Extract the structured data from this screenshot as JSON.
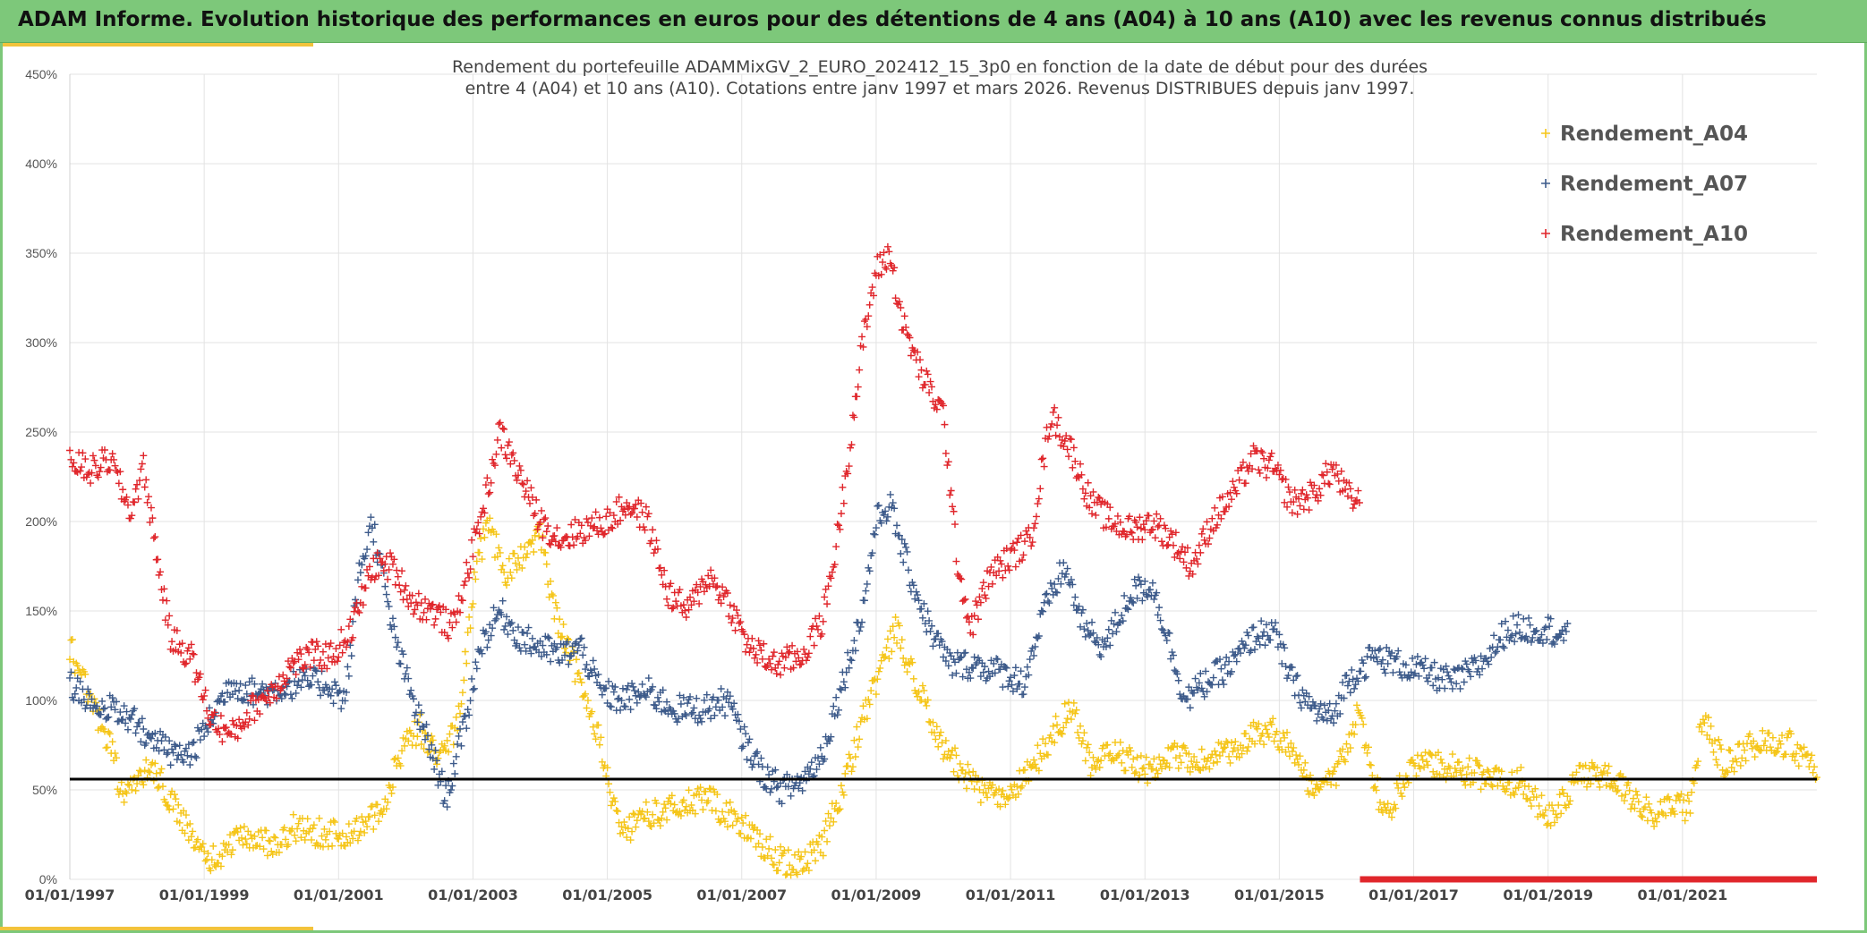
{
  "header": {
    "title": "ADAM Informe. Evolution historique des performances en euros pour des détentions de 4 ans (A04) à 10 ans (A10) avec les revenus connus distribués"
  },
  "chart_data": {
    "type": "scatter",
    "subtitle_line1": "Rendement du portefeuille ADAMMixGV_2_EURO_202412_15_3p0  en fonction de la date de début pour des durées",
    "subtitle_line2": "entre 4 (A04) et 10 ans (A10). Cotations entre janv 1997 et mars 2026. Revenus DISTRIBUES depuis janv 1997.",
    "y_ticks": [
      "0%",
      "50%",
      "100%",
      "150%",
      "200%",
      "250%",
      "300%",
      "350%",
      "400%",
      "450%"
    ],
    "x_ticks": [
      "01/01/1997",
      "01/01/1999",
      "01/01/2001",
      "01/01/2003",
      "01/01/2005",
      "01/01/2007",
      "01/01/2009",
      "01/01/2011",
      "01/01/2013",
      "01/01/2015",
      "01/01/2017",
      "01/01/2019",
      "01/01/2021"
    ],
    "x_range": [
      1997.0,
      2023.0
    ],
    "y_range": [
      0,
      450
    ],
    "reference_line": 56,
    "legend": [
      "Rendement_A04",
      "Rendement_A07",
      "Rendement_A10"
    ],
    "colors": {
      "A04": "#f5c518",
      "A07": "#3c5a8a",
      "A10": "#e0262b",
      "ref": "#000000",
      "grid": "#e3e3e3"
    },
    "series": [
      {
        "name": "Rendement_A04",
        "key": "A04",
        "anchors": [
          [
            1997.0,
            130
          ],
          [
            1997.3,
            100
          ],
          [
            1997.6,
            75
          ],
          [
            1997.8,
            45
          ],
          [
            1998.0,
            55
          ],
          [
            1998.2,
            65
          ],
          [
            1998.5,
            45
          ],
          [
            1998.8,
            25
          ],
          [
            1999.1,
            10
          ],
          [
            1999.4,
            20
          ],
          [
            1999.7,
            25
          ],
          [
            2000.0,
            20
          ],
          [
            2000.4,
            30
          ],
          [
            2000.8,
            25
          ],
          [
            2001.1,
            25
          ],
          [
            2001.4,
            30
          ],
          [
            2001.7,
            40
          ],
          [
            2001.9,
            70
          ],
          [
            2002.2,
            85
          ],
          [
            2002.5,
            65
          ],
          [
            2002.8,
            90
          ],
          [
            2003.0,
            160
          ],
          [
            2003.2,
            200
          ],
          [
            2003.5,
            170
          ],
          [
            2003.8,
            185
          ],
          [
            2004.0,
            195
          ],
          [
            2004.2,
            150
          ],
          [
            2004.5,
            120
          ],
          [
            2004.8,
            90
          ],
          [
            2005.0,
            55
          ],
          [
            2005.2,
            25
          ],
          [
            2005.5,
            35
          ],
          [
            2006.0,
            40
          ],
          [
            2006.5,
            45
          ],
          [
            2007.0,
            30
          ],
          [
            2007.3,
            20
          ],
          [
            2007.6,
            10
          ],
          [
            2007.9,
            8
          ],
          [
            2008.2,
            20
          ],
          [
            2008.5,
            50
          ],
          [
            2008.8,
            90
          ],
          [
            2009.1,
            120
          ],
          [
            2009.3,
            140
          ],
          [
            2009.6,
            110
          ],
          [
            2009.9,
            80
          ],
          [
            2010.2,
            65
          ],
          [
            2010.5,
            50
          ],
          [
            2010.9,
            45
          ],
          [
            2011.3,
            60
          ],
          [
            2011.6,
            80
          ],
          [
            2011.9,
            95
          ],
          [
            2012.2,
            65
          ],
          [
            2012.6,
            70
          ],
          [
            2013.0,
            60
          ],
          [
            2013.4,
            70
          ],
          [
            2013.8,
            65
          ],
          [
            2014.2,
            70
          ],
          [
            2014.6,
            80
          ],
          [
            2014.9,
            85
          ],
          [
            2015.2,
            70
          ],
          [
            2015.5,
            50
          ],
          [
            2015.8,
            55
          ],
          [
            2016.0,
            75
          ],
          [
            2016.2,
            95
          ],
          [
            2016.4,
            55
          ],
          [
            2016.6,
            35
          ],
          [
            2016.9,
            60
          ],
          [
            2017.3,
            65
          ],
          [
            2017.8,
            60
          ],
          [
            2018.3,
            55
          ],
          [
            2018.6,
            55
          ],
          [
            2018.9,
            40
          ],
          [
            2019.1,
            35
          ],
          [
            2019.4,
            55
          ],
          [
            2019.7,
            60
          ],
          [
            2020.0,
            55
          ],
          [
            2020.3,
            45
          ],
          [
            2020.6,
            35
          ],
          [
            2020.9,
            40
          ],
          [
            2021.1,
            40
          ],
          [
            2021.3,
            90
          ],
          [
            2021.6,
            65
          ],
          [
            2021.9,
            70
          ],
          [
            2022.2,
            80
          ],
          [
            2022.6,
            75
          ],
          [
            2022.9,
            65
          ],
          [
            2023.0,
            55
          ]
        ]
      },
      {
        "name": "Rendement_A07",
        "key": "A07",
        "anchors": [
          [
            1997.0,
            110
          ],
          [
            1997.3,
            100
          ],
          [
            1997.6,
            95
          ],
          [
            1997.9,
            90
          ],
          [
            1998.2,
            80
          ],
          [
            1998.5,
            70
          ],
          [
            1998.8,
            70
          ],
          [
            1999.1,
            90
          ],
          [
            1999.4,
            110
          ],
          [
            1999.7,
            105
          ],
          [
            2000.0,
            105
          ],
          [
            2000.4,
            110
          ],
          [
            2000.8,
            110
          ],
          [
            2001.1,
            100
          ],
          [
            2001.3,
            170
          ],
          [
            2001.5,
            200
          ],
          [
            2001.8,
            140
          ],
          [
            2002.1,
            100
          ],
          [
            2002.4,
            70
          ],
          [
            2002.6,
            45
          ],
          [
            2002.9,
            90
          ],
          [
            2003.1,
            130
          ],
          [
            2003.4,
            150
          ],
          [
            2003.7,
            135
          ],
          [
            2004.0,
            130
          ],
          [
            2004.3,
            125
          ],
          [
            2004.6,
            130
          ],
          [
            2004.9,
            105
          ],
          [
            2005.2,
            100
          ],
          [
            2005.6,
            105
          ],
          [
            2006.0,
            95
          ],
          [
            2006.4,
            95
          ],
          [
            2006.8,
            100
          ],
          [
            2007.0,
            80
          ],
          [
            2007.3,
            60
          ],
          [
            2007.6,
            50
          ],
          [
            2007.9,
            55
          ],
          [
            2008.2,
            70
          ],
          [
            2008.5,
            110
          ],
          [
            2008.8,
            150
          ],
          [
            2009.0,
            200
          ],
          [
            2009.2,
            210
          ],
          [
            2009.5,
            170
          ],
          [
            2009.8,
            140
          ],
          [
            2010.1,
            120
          ],
          [
            2010.5,
            120
          ],
          [
            2010.9,
            115
          ],
          [
            2011.2,
            110
          ],
          [
            2011.5,
            150
          ],
          [
            2011.8,
            175
          ],
          [
            2012.1,
            140
          ],
          [
            2012.4,
            130
          ],
          [
            2012.8,
            160
          ],
          [
            2013.1,
            165
          ],
          [
            2013.3,
            140
          ],
          [
            2013.6,
            100
          ],
          [
            2013.9,
            110
          ],
          [
            2014.3,
            120
          ],
          [
            2014.6,
            135
          ],
          [
            2014.9,
            140
          ],
          [
            2015.2,
            110
          ],
          [
            2015.5,
            95
          ],
          [
            2015.8,
            90
          ],
          [
            2016.0,
            110
          ],
          [
            2016.4,
            125
          ],
          [
            2016.8,
            120
          ],
          [
            2017.2,
            115
          ],
          [
            2017.6,
            110
          ],
          [
            2018.0,
            120
          ],
          [
            2018.4,
            140
          ],
          [
            2018.7,
            140
          ],
          [
            2019.0,
            140
          ],
          [
            2019.3,
            135
          ]
        ]
      },
      {
        "name": "Rendement_A10",
        "key": "A10",
        "anchors": [
          [
            1997.0,
            235
          ],
          [
            1997.3,
            228
          ],
          [
            1997.6,
            235
          ],
          [
            1997.9,
            205
          ],
          [
            1998.1,
            230
          ],
          [
            1998.3,
            180
          ],
          [
            1998.5,
            135
          ],
          [
            1998.8,
            125
          ],
          [
            1999.1,
            90
          ],
          [
            1999.4,
            80
          ],
          [
            1999.7,
            95
          ],
          [
            2000.0,
            105
          ],
          [
            2000.3,
            120
          ],
          [
            2000.6,
            125
          ],
          [
            2000.9,
            125
          ],
          [
            2001.2,
            140
          ],
          [
            2001.5,
            175
          ],
          [
            2001.8,
            175
          ],
          [
            2002.1,
            155
          ],
          [
            2002.4,
            150
          ],
          [
            2002.7,
            140
          ],
          [
            2003.0,
            185
          ],
          [
            2003.2,
            215
          ],
          [
            2003.4,
            250
          ],
          [
            2003.7,
            225
          ],
          [
            2004.0,
            200
          ],
          [
            2004.3,
            190
          ],
          [
            2004.6,
            195
          ],
          [
            2005.0,
            200
          ],
          [
            2005.3,
            210
          ],
          [
            2005.6,
            200
          ],
          [
            2005.9,
            160
          ],
          [
            2006.2,
            150
          ],
          [
            2006.5,
            170
          ],
          [
            2006.8,
            155
          ],
          [
            2007.1,
            130
          ],
          [
            2007.5,
            120
          ],
          [
            2007.9,
            125
          ],
          [
            2008.2,
            145
          ],
          [
            2008.4,
            185
          ],
          [
            2008.6,
            240
          ],
          [
            2008.8,
            300
          ],
          [
            2009.0,
            340
          ],
          [
            2009.2,
            350
          ],
          [
            2009.4,
            310
          ],
          [
            2009.7,
            280
          ],
          [
            2010.0,
            260
          ],
          [
            2010.2,
            180
          ],
          [
            2010.4,
            140
          ],
          [
            2010.7,
            170
          ],
          [
            2011.0,
            180
          ],
          [
            2011.3,
            190
          ],
          [
            2011.6,
            260
          ],
          [
            2011.9,
            240
          ],
          [
            2012.2,
            210
          ],
          [
            2012.5,
            200
          ],
          [
            2012.8,
            195
          ],
          [
            2013.1,
            200
          ],
          [
            2013.4,
            190
          ],
          [
            2013.7,
            175
          ],
          [
            2014.0,
            200
          ],
          [
            2014.3,
            215
          ],
          [
            2014.6,
            235
          ],
          [
            2014.9,
            230
          ],
          [
            2015.2,
            210
          ],
          [
            2015.5,
            215
          ],
          [
            2015.8,
            230
          ],
          [
            2016.0,
            215
          ],
          [
            2016.2,
            210
          ]
        ]
      }
    ],
    "distribution_band": {
      "color": "#e0262b",
      "x_start": 2016.2,
      "x_end": 2023.0,
      "y_value": 0
    }
  }
}
